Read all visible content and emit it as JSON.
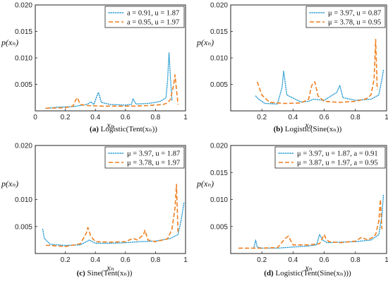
{
  "colors": {
    "series1": "#2f9fd3",
    "series2": "#f07f1f",
    "frame": "#222222",
    "background": "#ffffff"
  },
  "chart_data": [
    {
      "type": "line",
      "caption": {
        "label": "(a)",
        "text": "Logistic(Tent(xₙ))"
      },
      "xlabel": "xₙ",
      "ylabel": "p(xₙ)",
      "xlim": [
        0,
        1
      ],
      "ylim": [
        0,
        0.02
      ],
      "xticks": [
        "0",
        "0.2",
        "0.4",
        "0.6",
        "0.8",
        "1"
      ],
      "yticks": [
        "0.005",
        "0.010",
        "0.015",
        "0.020"
      ],
      "legend_position": "top-right",
      "series": [
        {
          "name": "a = 0.91, u = 1.87",
          "style": "dotted",
          "color": "#2f9fd3",
          "x": [
            0.07,
            0.15,
            0.25,
            0.32,
            0.35,
            0.37,
            0.39,
            0.41,
            0.42,
            0.44,
            0.5,
            0.6,
            0.64,
            0.65,
            0.67,
            0.75,
            0.8,
            0.83,
            0.85,
            0.87,
            0.88,
            0.89,
            0.9,
            0.91
          ],
          "y": [
            0.0005,
            0.0007,
            0.0008,
            0.0011,
            0.0013,
            0.0017,
            0.0012,
            0.0028,
            0.0035,
            0.0016,
            0.0012,
            0.0011,
            0.0012,
            0.0023,
            0.0013,
            0.0014,
            0.0016,
            0.0018,
            0.0021,
            0.0025,
            0.0055,
            0.011,
            0.006,
            0.002
          ]
        },
        {
          "name": "a = 0.95, u = 1.97",
          "style": "dashed",
          "color": "#f07f1f",
          "x": [
            0.07,
            0.2,
            0.25,
            0.27,
            0.28,
            0.3,
            0.35,
            0.45,
            0.55,
            0.65,
            0.75,
            0.85,
            0.88,
            0.9,
            0.92,
            0.93,
            0.94,
            0.95
          ],
          "y": [
            0.0005,
            0.0006,
            0.0009,
            0.0021,
            0.0025,
            0.0012,
            0.001,
            0.0009,
            0.0009,
            0.0009,
            0.001,
            0.0012,
            0.0015,
            0.0022,
            0.0048,
            0.0068,
            0.004,
            0.0012
          ]
        }
      ]
    },
    {
      "type": "line",
      "caption": {
        "label": "(b)",
        "text": "Logistic(Sine(xₙ))"
      },
      "xlabel": "xₙ",
      "ylabel": "p(xₙ)",
      "xlim": [
        0,
        1
      ],
      "ylim": [
        0,
        0.02
      ],
      "xticks": [
        "0.2",
        "0.4",
        "0.6",
        "0.8",
        "1"
      ],
      "yticks": [
        "0.005",
        "0.010",
        "0.015",
        "0.020"
      ],
      "legend_position": "top-right",
      "series": [
        {
          "name": "μ = 3.97, u = 0.87",
          "style": "dotted",
          "color": "#2f9fd3",
          "x": [
            0.16,
            0.18,
            0.22,
            0.3,
            0.33,
            0.34,
            0.36,
            0.45,
            0.5,
            0.53,
            0.6,
            0.68,
            0.7,
            0.72,
            0.8,
            0.9,
            0.95,
            0.97,
            0.98
          ],
          "y": [
            0.0028,
            0.0022,
            0.0014,
            0.0013,
            0.0045,
            0.0075,
            0.003,
            0.0017,
            0.0018,
            0.0022,
            0.002,
            0.0035,
            0.0048,
            0.0025,
            0.002,
            0.0022,
            0.003,
            0.006,
            0.0078
          ]
        },
        {
          "name": "μ = 3.78, u = 0.95",
          "style": "dashed",
          "color": "#f07f1f",
          "x": [
            0.17,
            0.2,
            0.25,
            0.35,
            0.45,
            0.5,
            0.52,
            0.54,
            0.56,
            0.6,
            0.7,
            0.8,
            0.87,
            0.9,
            0.92,
            0.93,
            0.94
          ],
          "y": [
            0.0055,
            0.003,
            0.0016,
            0.0014,
            0.0015,
            0.0022,
            0.0048,
            0.0055,
            0.0028,
            0.0018,
            0.0016,
            0.0018,
            0.0023,
            0.003,
            0.006,
            0.0135,
            0.004
          ]
        }
      ]
    },
    {
      "type": "line",
      "caption": {
        "label": "(c)",
        "text": "Sine(Tent(xₙ))"
      },
      "xlabel": "xₙ",
      "ylabel": "p(xₙ)",
      "xlim": [
        0,
        1
      ],
      "ylim": [
        0,
        0.02
      ],
      "xticks": [
        "0.2",
        "0.4",
        "0.6",
        "0.8",
        "1"
      ],
      "yticks": [
        "0.005",
        "0.010",
        "0.020"
      ],
      "legend_position": "top-right",
      "series": [
        {
          "name": "μ = 3.97, u = 1.87",
          "style": "dotted",
          "color": "#2f9fd3",
          "x": [
            0.05,
            0.06,
            0.1,
            0.2,
            0.3,
            0.34,
            0.36,
            0.4,
            0.5,
            0.6,
            0.7,
            0.8,
            0.9,
            0.95,
            0.97,
            0.99
          ],
          "y": [
            0.0045,
            0.0028,
            0.0017,
            0.0015,
            0.0016,
            0.0022,
            0.0025,
            0.0019,
            0.0019,
            0.002,
            0.0022,
            0.0023,
            0.0028,
            0.0035,
            0.006,
            0.0095
          ]
        },
        {
          "name": "μ = 3.78, u = 1.97",
          "style": "dashed",
          "color": "#f07f1f",
          "x": [
            0.07,
            0.1,
            0.2,
            0.3,
            0.34,
            0.35,
            0.37,
            0.4,
            0.5,
            0.6,
            0.65,
            0.68,
            0.72,
            0.73,
            0.75,
            0.8,
            0.88,
            0.91,
            0.93,
            0.94,
            0.95
          ],
          "y": [
            0.0015,
            0.0015,
            0.0013,
            0.0018,
            0.0038,
            0.0048,
            0.0032,
            0.0022,
            0.0021,
            0.0022,
            0.0028,
            0.0025,
            0.0035,
            0.0043,
            0.0025,
            0.0022,
            0.0027,
            0.0045,
            0.0085,
            0.0128,
            0.004
          ]
        }
      ]
    },
    {
      "type": "line",
      "caption": {
        "label": "(d)",
        "text": "Logistic(Tent(Sine(xₙ)))"
      },
      "xlabel": "xₙ",
      "ylabel": "p(xₙ)",
      "xlim": [
        0,
        1
      ],
      "ylim": [
        0,
        0.02
      ],
      "xticks": [
        "0.2",
        "0.4",
        "0.6",
        "0.8",
        "1"
      ],
      "yticks": [
        "0.005",
        "0.010",
        "0.015",
        "0.020"
      ],
      "legend_position": "top-right",
      "series": [
        {
          "name": "μ = 3.97, u = 1.87, a = 0.91",
          "style": "dotted",
          "color": "#2f9fd3",
          "x": [
            0.15,
            0.16,
            0.17,
            0.2,
            0.3,
            0.4,
            0.5,
            0.55,
            0.57,
            0.59,
            0.62,
            0.7,
            0.8,
            0.9,
            0.95,
            0.97,
            0.98
          ],
          "y": [
            0.0012,
            0.0025,
            0.0012,
            0.001,
            0.001,
            0.0012,
            0.0014,
            0.0016,
            0.0035,
            0.0025,
            0.002,
            0.0021,
            0.0022,
            0.0025,
            0.0035,
            0.007,
            0.011
          ]
        },
        {
          "name": "μ = 3.87, u = 1.97, a = 0.95",
          "style": "dashed",
          "color": "#f07f1f",
          "x": [
            0.05,
            0.2,
            0.3,
            0.35,
            0.37,
            0.4,
            0.5,
            0.57,
            0.6,
            0.61,
            0.63,
            0.7,
            0.8,
            0.84,
            0.88,
            0.91,
            0.93,
            0.95,
            0.96,
            0.97
          ],
          "y": [
            0.001,
            0.001,
            0.0011,
            0.0028,
            0.0032,
            0.0016,
            0.0016,
            0.0018,
            0.0035,
            0.0028,
            0.0022,
            0.002,
            0.0023,
            0.003,
            0.0025,
            0.003,
            0.0035,
            0.006,
            0.01,
            0.0045
          ]
        }
      ]
    }
  ]
}
